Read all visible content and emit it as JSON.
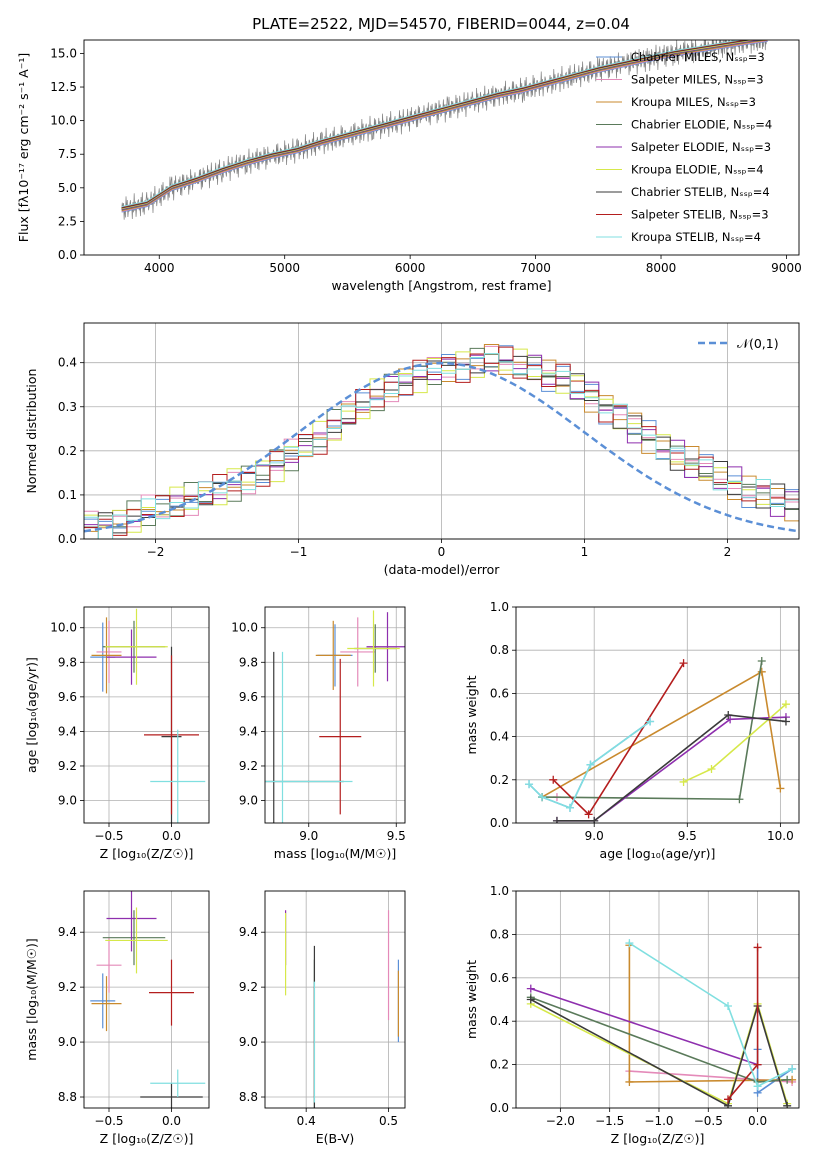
{
  "figure_title": "PLATE=2522, MJD=54570, FIBERID=0044, z=0.04",
  "series_colors": [
    "#5b8fd6",
    "#e48ab9",
    "#c98a2e",
    "#5a7a5a",
    "#8e2fae",
    "#d6e84a",
    "#3a3a3a",
    "#b41e1e",
    "#80dfe0"
  ],
  "chart_data": [
    {
      "id": "spectrum",
      "type": "line",
      "xlabel": "wavelength [Angstrom, rest frame]",
      "ylabel": "Flux [fλ10⁻¹⁷ erg cm⁻² s⁻¹ A⁻¹]",
      "xlim": [
        3400,
        9100
      ],
      "ylim": [
        0,
        16
      ],
      "xticks": [
        "4000",
        "5000",
        "6000",
        "7000",
        "8000",
        "9000"
      ],
      "yticks": [
        "0.0",
        "2.5",
        "5.0",
        "7.5",
        "10.0",
        "12.5",
        "15.0"
      ],
      "grid": false,
      "legend_placement": "top-right",
      "data_color": "#808080",
      "x": [
        3700,
        3900,
        4100,
        4300,
        4500,
        4700,
        4900,
        5100,
        5300,
        5500,
        5700,
        5900,
        6100,
        6300,
        6500,
        6700,
        6900,
        7100,
        7300,
        7500,
        7700,
        7900,
        8100,
        8300,
        8500,
        8700,
        8850
      ],
      "y": [
        3.4,
        3.8,
        5.0,
        5.6,
        6.3,
        6.9,
        7.4,
        7.8,
        8.4,
        8.9,
        9.4,
        9.9,
        10.4,
        10.9,
        11.4,
        11.9,
        12.3,
        12.8,
        13.3,
        13.8,
        14.2,
        14.6,
        15.0,
        15.3,
        15.6,
        15.9,
        16.1
      ],
      "series": [
        {
          "name": "Chabrier MILES, Nₛₛₚ=3"
        },
        {
          "name": "Salpeter MILES, Nₛₛₚ=3"
        },
        {
          "name": "Kroupa MILES, Nₛₛₚ=3"
        },
        {
          "name": "Chabrier ELODIE, Nₛₛₚ=4"
        },
        {
          "name": "Salpeter ELODIE, Nₛₛₚ=3"
        },
        {
          "name": "Kroupa ELODIE, Nₛₛₚ=4"
        },
        {
          "name": "Chabrier STELIB, Nₛₛₚ=4"
        },
        {
          "name": "Salpeter STELIB, Nₛₛₚ=3"
        },
        {
          "name": "Kroupa STELIB, Nₛₛₚ=4"
        }
      ]
    },
    {
      "id": "residuals",
      "type": "line",
      "xlabel": "(data-model)/error",
      "ylabel": "Normed distribution",
      "xlim": [
        -2.5,
        2.5
      ],
      "ylim": [
        0,
        0.49
      ],
      "xticks": [
        "−2",
        "−1",
        "0",
        "1",
        "2"
      ],
      "yticks": [
        "0.0",
        "0.1",
        "0.2",
        "0.3",
        "0.4"
      ],
      "grid": true,
      "legend_placement": "top-right",
      "reference_curve": {
        "name": "𝒩(0,1)",
        "color": "#5b8fd6"
      },
      "bin_width": 0.1,
      "hist_values": [
        0.03,
        0.035,
        0.04,
        0.05,
        0.06,
        0.07,
        0.08,
        0.09,
        0.1,
        0.11,
        0.125,
        0.14,
        0.155,
        0.17,
        0.19,
        0.21,
        0.23,
        0.255,
        0.28,
        0.3,
        0.325,
        0.345,
        0.36,
        0.37,
        0.385,
        0.39,
        0.395,
        0.4,
        0.41,
        0.4,
        0.395,
        0.385,
        0.37,
        0.36,
        0.345,
        0.325,
        0.3,
        0.28,
        0.255,
        0.23,
        0.21,
        0.19,
        0.17,
        0.155,
        0.14,
        0.125,
        0.11,
        0.1,
        0.09,
        0.08
      ]
    },
    {
      "id": "age-vs-Z",
      "type": "scatter",
      "xlabel": "Z [log₁₀(Z/Z☉)]",
      "ylabel": "age  [log₁₀(age/yr)]",
      "xlim": [
        -0.7,
        0.3
      ],
      "ylim": [
        8.87,
        10.12
      ],
      "xticks": [
        "−0.5",
        "0.0"
      ],
      "yticks": [
        "9.0",
        "9.2",
        "9.4",
        "9.6",
        "9.8",
        "10.0"
      ],
      "grid": true,
      "points": [
        {
          "x": -0.55,
          "xerr": 0.1,
          "y": 9.83,
          "yerr": 0.2
        },
        {
          "x": -0.5,
          "xerr": 0.1,
          "y": 9.86,
          "yerr": 0.18
        },
        {
          "x": -0.52,
          "xerr": 0.12,
          "y": 9.84,
          "yerr": 0.22
        },
        {
          "x": -0.3,
          "xerr": 0.25,
          "y": 9.89,
          "yerr": 0.15
        },
        {
          "x": -0.32,
          "xerr": 0.2,
          "y": 9.83,
          "yerr": 0.16
        },
        {
          "x": -0.28,
          "xerr": 0.25,
          "y": 9.89,
          "yerr": 0.22
        },
        {
          "x": 0.0,
          "xerr": 0.08,
          "y": 9.37,
          "yerr": 0.52
        },
        {
          "x": 0.0,
          "xerr": 0.22,
          "y": 9.38,
          "yerr": 0.46
        },
        {
          "x": 0.05,
          "xerr": 0.22,
          "y": 9.11,
          "yerr": 0.3
        }
      ]
    },
    {
      "id": "age-vs-mass",
      "type": "scatter",
      "xlabel": "mass [log₁₀(M/M☉)]",
      "ylabel": "",
      "xlim": [
        8.75,
        9.55
      ],
      "ylim": [
        8.87,
        10.12
      ],
      "xticks": [
        "9.0",
        "9.5"
      ],
      "yticks": [
        "9.0",
        "9.2",
        "9.4",
        "9.6",
        "9.8",
        "10.0"
      ],
      "grid": true,
      "points": [
        {
          "x": 9.15,
          "xerr": 0.1,
          "y": 9.84,
          "yerr": 0.18
        },
        {
          "x": 9.28,
          "xerr": 0.1,
          "y": 9.86,
          "yerr": 0.2
        },
        {
          "x": 9.14,
          "xerr": 0.1,
          "y": 9.84,
          "yerr": 0.2
        },
        {
          "x": 9.38,
          "xerr": 0.12,
          "y": 9.88,
          "yerr": 0.14
        },
        {
          "x": 9.45,
          "xerr": 0.12,
          "y": 9.89,
          "yerr": 0.2
        },
        {
          "x": 9.37,
          "xerr": 0.15,
          "y": 9.88,
          "yerr": 0.22
        },
        {
          "x": 8.8,
          "xerr": 0.4,
          "y": 9.11,
          "yerr": 0.75
        },
        {
          "x": 9.18,
          "xerr": 0.12,
          "y": 9.37,
          "yerr": 0.45
        },
        {
          "x": 8.85,
          "xerr": 0.4,
          "y": 9.11,
          "yerr": 0.75
        }
      ]
    },
    {
      "id": "mass-weight-vs-age",
      "type": "line",
      "xlabel": "age  [log₁₀(age/yr)]",
      "ylabel": "mass weight",
      "xlim": [
        8.58,
        10.1
      ],
      "ylim": [
        0,
        1.0
      ],
      "xticks": [
        "9.0",
        "9.5",
        "10.0"
      ],
      "yticks": [
        "0.0",
        "0.2",
        "0.4",
        "0.6",
        "0.8",
        "1.0"
      ],
      "grid": true,
      "series": [
        {
          "x": [
            8.65,
            8.72,
            8.87,
            8.98,
            9.3
          ],
          "y": [
            0.18,
            0.12,
            0.07,
            0.27,
            0.47
          ]
        },
        {
          "x": 8.8,
          "y": 0.12
        },
        {
          "x": [
            8.72,
            9.9,
            10.0
          ],
          "y": [
            0.12,
            0.7,
            0.16
          ]
        },
        {
          "x": [
            8.72,
            9.78,
            9.9
          ],
          "y": [
            0.12,
            0.11,
            0.75
          ]
        },
        {
          "x": [
            8.8,
            9.0,
            9.73,
            10.03
          ],
          "y": [
            0.01,
            0.01,
            0.48,
            0.49
          ]
        },
        {
          "x": [
            9.48,
            9.63,
            10.03
          ],
          "y": [
            0.19,
            0.25,
            0.55
          ]
        },
        {
          "x": [
            8.8,
            9.0,
            9.72,
            10.03
          ],
          "y": [
            0.01,
            0.01,
            0.5,
            0.47
          ]
        },
        {
          "x": [
            8.78,
            8.97,
            9.48
          ],
          "y": [
            0.2,
            0.04,
            0.74
          ]
        },
        {
          "x": [
            8.65,
            8.72,
            8.87,
            8.98,
            9.3
          ],
          "y": [
            0.18,
            0.12,
            0.07,
            0.27,
            0.47
          ]
        }
      ]
    },
    {
      "id": "mass-vs-Z",
      "type": "scatter",
      "xlabel": "Z [log₁₀(Z/Z☉)]",
      "ylabel": "mass [log₁₀(M/M☉)]",
      "xlim": [
        -0.7,
        0.3
      ],
      "ylim": [
        8.76,
        9.55
      ],
      "xticks": [
        "−0.5",
        "0.0"
      ],
      "yticks": [
        "8.8",
        "9.0",
        "9.2",
        "9.4"
      ],
      "grid": true,
      "points": [
        {
          "x": -0.55,
          "xerr": 0.1,
          "y": 9.15,
          "yerr": 0.1
        },
        {
          "x": -0.5,
          "xerr": 0.1,
          "y": 9.28,
          "yerr": 0.1
        },
        {
          "x": -0.52,
          "xerr": 0.12,
          "y": 9.14,
          "yerr": 0.1
        },
        {
          "x": -0.3,
          "xerr": 0.25,
          "y": 9.38,
          "yerr": 0.1
        },
        {
          "x": -0.32,
          "xerr": 0.2,
          "y": 9.45,
          "yerr": 0.12
        },
        {
          "x": -0.28,
          "xerr": 0.25,
          "y": 9.37,
          "yerr": 0.12
        },
        {
          "x": 0.0,
          "xerr": 0.25,
          "y": 8.8,
          "yerr": 0.05
        },
        {
          "x": 0.0,
          "xerr": 0.18,
          "y": 9.18,
          "yerr": 0.12
        },
        {
          "x": 0.05,
          "xerr": 0.22,
          "y": 8.85,
          "yerr": 0.05
        }
      ]
    },
    {
      "id": "mass-vs-EBV",
      "type": "scatter",
      "xlabel": "E(B-V)",
      "ylabel": "",
      "xlim": [
        0.35,
        0.52
      ],
      "ylim": [
        8.76,
        9.55
      ],
      "xticks": [
        "0.4",
        "0.5"
      ],
      "yticks": [
        "8.8",
        "9.0",
        "9.2",
        "9.4"
      ],
      "grid": true,
      "points": [
        {
          "x": 0.512,
          "y": 9.15,
          "yerr": 0.15
        },
        {
          "x": 0.5,
          "y": 9.28,
          "yerr": 0.2
        },
        {
          "x": 0.512,
          "y": 9.14,
          "yerr": 0.12
        },
        {
          "x": 0.41,
          "y": 9.0,
          "yerr": 0.3
        },
        {
          "x": 0.375,
          "y": 9.38,
          "yerr": 0.1
        },
        {
          "x": 0.375,
          "y": 9.32,
          "yerr": 0.15
        },
        {
          "x": 0.41,
          "y": 9.0,
          "yerr": 0.35
        },
        {
          "x": 0.41,
          "y": 9.0,
          "yerr": 0.2
        },
        {
          "x": 0.41,
          "y": 9.0,
          "yerr": 0.22
        }
      ]
    },
    {
      "id": "mass-weight-vs-Z",
      "type": "line",
      "xlabel": "Z [log₁₀(Z/Z☉)]",
      "ylabel": "mass weight",
      "xlim": [
        -2.45,
        0.42
      ],
      "ylim": [
        0,
        1.0
      ],
      "xticks": [
        "−2.0",
        "−1.5",
        "−1.0",
        "−0.5",
        "0.0"
      ],
      "yticks": [
        "0.0",
        "0.2",
        "0.4",
        "0.6",
        "0.8",
        "1.0"
      ],
      "grid": true,
      "series": [
        {
          "x": [
            0.0,
            0.0,
            0.35
          ],
          "y": [
            0.27,
            0.07,
            0.18
          ]
        },
        {
          "x": [
            -1.3,
            0.35
          ],
          "y": [
            0.17,
            0.12
          ]
        },
        {
          "x": [
            -1.3,
            -1.3,
            0.35
          ],
          "y": [
            0.75,
            0.12,
            0.13
          ]
        },
        {
          "x": [
            -2.3,
            0.0,
            0.3
          ],
          "y": [
            0.51,
            0.12,
            0.13
          ]
        },
        {
          "x": [
            -2.3,
            0.0
          ],
          "y": [
            0.55,
            0.2
          ]
        },
        {
          "x": [
            -2.3,
            -0.3,
            0.0,
            0.3
          ],
          "y": [
            0.48,
            0.02,
            0.48,
            0.02
          ]
        },
        {
          "x": [
            -2.3,
            -0.3,
            0.0,
            0.3
          ],
          "y": [
            0.5,
            0.01,
            0.47,
            0.01
          ]
        },
        {
          "x": [
            -0.3,
            0.0,
            0.0
          ],
          "y": [
            0.04,
            0.2,
            0.74
          ]
        },
        {
          "x": [
            -1.3,
            -0.3,
            0.0,
            0.35
          ],
          "y": [
            0.76,
            0.47,
            0.1,
            0.18
          ]
        }
      ]
    }
  ]
}
